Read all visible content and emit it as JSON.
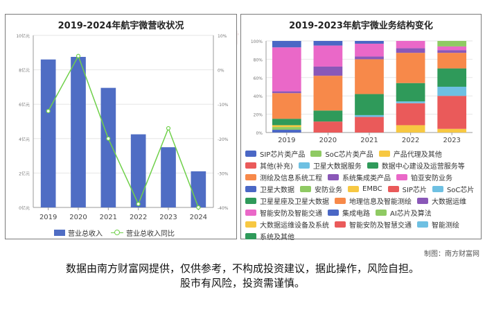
{
  "left_chart": {
    "title": "2019-2024年航宇微营收状况",
    "legend": {
      "bar": "营业总收入",
      "line": "营业总收入同比"
    },
    "y_left_ticks": [
      "0亿元",
      "2亿元",
      "4亿元",
      "6亿元",
      "8亿元",
      "10亿元"
    ],
    "y_right_ticks": [
      "-40%",
      "-30%",
      "-20%",
      "-10%",
      "0%",
      "10%"
    ]
  },
  "right_chart": {
    "title": "2019-2023年航宇微业务结构变化",
    "y_ticks": [
      "0%",
      "20%",
      "40%",
      "60%",
      "80%",
      "100%"
    ]
  },
  "chart_data": [
    {
      "type": "bar",
      "title": "2019-2024年航宇微营收状况",
      "categories": [
        "2019",
        "2020",
        "2021",
        "2022",
        "2023",
        "2024"
      ],
      "series": [
        {
          "name": "营业总收入",
          "type": "bar",
          "axis": "left",
          "unit": "亿元",
          "values": [
            8.6,
            8.75,
            6.95,
            4.25,
            3.5,
            2.1
          ]
        },
        {
          "name": "营业总收入同比",
          "type": "line",
          "axis": "right",
          "unit": "%",
          "values": [
            -12,
            4,
            -20,
            -39,
            -17,
            -40
          ]
        }
      ],
      "y_left": {
        "min": 0,
        "max": 10,
        "step": 2
      },
      "y_right": {
        "min": -40,
        "max": 10,
        "step": 10
      },
      "colors": {
        "bar": "#4f6dc4",
        "line": "#6fd04a"
      },
      "legend_position": "bottom"
    },
    {
      "type": "bar",
      "stacked": true,
      "title": "2019-2023年航宇微业务结构变化",
      "categories": [
        "2019",
        "2020",
        "2021",
        "2022",
        "2023"
      ],
      "y_range": [
        0,
        100
      ],
      "legend_position": "bottom",
      "series": [
        {
          "name": "SIP芯片类产品",
          "color": "#4a67c5",
          "values": [
            3,
            0,
            0,
            0,
            0
          ]
        },
        {
          "name": "SoC芯片类产品",
          "color": "#8fca63",
          "values": [
            3,
            0,
            0,
            0,
            0
          ]
        },
        {
          "name": "产品代理及其他",
          "color": "#f7c842",
          "values": [
            2,
            0,
            0,
            8,
            0
          ]
        },
        {
          "name": "其他(补充)",
          "color": "#ea5a5a",
          "values": [
            0,
            12,
            17,
            24,
            0
          ]
        },
        {
          "name": "卫星大数据服务",
          "color": "#6ec0e2",
          "values": [
            0,
            0,
            2,
            2,
            0
          ]
        },
        {
          "name": "数据中心建设及运营服务等",
          "color": "#2f9a5a",
          "values": [
            7,
            12,
            23,
            20,
            0
          ]
        },
        {
          "name": "测绘及信息系统工程",
          "color": "#f7894a",
          "values": [
            28,
            38,
            38,
            33,
            0
          ]
        },
        {
          "name": "系统集成类产品",
          "color": "#8a58b8",
          "values": [
            2,
            10,
            3,
            5,
            0
          ]
        },
        {
          "name": "铂亚安防业务",
          "color": "#ea68c8",
          "values": [
            48,
            23,
            14,
            8,
            0
          ]
        },
        {
          "name": "卫星大数据",
          "color": "#4a67c5",
          "values": [
            0,
            0,
            0,
            0,
            0
          ]
        },
        {
          "name": "安防业务",
          "color": "#8fca63",
          "values": [
            0,
            0,
            0,
            0,
            0
          ]
        },
        {
          "name": "EMBC",
          "color": "#f7c842",
          "values": [
            0,
            0,
            0,
            0,
            4
          ]
        },
        {
          "name": "SIP芯片",
          "color": "#ea5a5a",
          "values": [
            0,
            0,
            0,
            0,
            36
          ]
        },
        {
          "name": "SoC芯片",
          "color": "#6ec0e2",
          "values": [
            0,
            0,
            0,
            0,
            10
          ]
        },
        {
          "name": "卫星星座及卫星大数据",
          "color": "#2f9a5a",
          "values": [
            0,
            0,
            0,
            0,
            20
          ]
        },
        {
          "name": "地理信息及智能测绘",
          "color": "#f7894a",
          "values": [
            0,
            0,
            0,
            0,
            17
          ]
        },
        {
          "name": "大数据运维",
          "color": "#8a58b8",
          "values": [
            0,
            0,
            0,
            0,
            3
          ]
        },
        {
          "name": "智能安防及智能交通",
          "color": "#ea68c8",
          "values": [
            0,
            0,
            0,
            0,
            4
          ]
        },
        {
          "name": "集成电路",
          "color": "#4a67c5",
          "values": [
            7,
            5,
            3,
            0,
            0
          ]
        },
        {
          "name": "AI芯片及算法",
          "color": "#8fca63",
          "values": [
            0,
            0,
            0,
            0,
            6
          ]
        },
        {
          "name": "大数据运维设备及系统",
          "color": "#f7c842",
          "values": [
            0,
            0,
            0,
            0,
            0
          ]
        },
        {
          "name": "智能安防及智慧交通",
          "color": "#ea5a5a",
          "values": [
            0,
            0,
            0,
            0,
            0
          ]
        },
        {
          "name": "智能测绘",
          "color": "#6ec0e2",
          "values": [
            0,
            0,
            0,
            0,
            0
          ]
        },
        {
          "name": "系统及其他",
          "color": "#2f9a5a",
          "values": [
            0,
            0,
            0,
            0,
            0
          ]
        }
      ]
    }
  ],
  "legend_layout": [
    [
      "SIP芯片类产品",
      "SoC芯片类产品",
      "产品代理及其他"
    ],
    [
      "其他(补充)",
      "卫星大数据服务",
      "数据中心建设及运营服务等"
    ],
    [
      "测绘及信息系统工程",
      "系统集成类产品",
      "铂亚安防业务"
    ],
    [
      "卫星大数据",
      "安防业务",
      "EMBC",
      "SIP芯片",
      "SoC芯片"
    ],
    [
      "卫星星座及卫星大数据",
      "地理信息及智能测绘",
      "大数据运维"
    ],
    [
      "智能安防及智能交通",
      "集成电路",
      "AI芯片及算法"
    ],
    [
      "大数据运维设备及系统",
      "智能安防及智慧交通",
      "智能测绘"
    ],
    [
      "系统及其他"
    ]
  ],
  "credit": "制图：南方财富网",
  "disclaimer": [
    "数据由南方财富网提供，仅供参考，不构成投资建议，据此操作，风险自担。",
    "股市有风险，投资需谨慎。"
  ],
  "watermark": "南方财富网"
}
